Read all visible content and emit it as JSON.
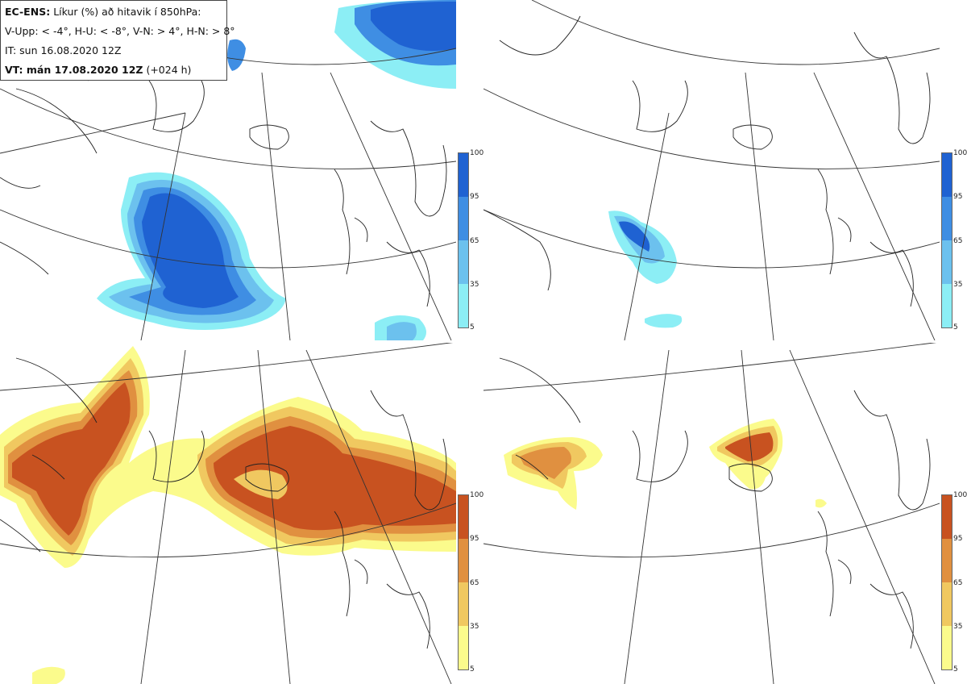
{
  "header": {
    "model": "EC-ENS:",
    "title": "Líkur (%) að hitavik í 850hPa:",
    "thresholds": "V-Upp: < -4°, H-U: < -8°, V-N: > 4°, H-N: > 8°",
    "issue_time": "IT: sun 16.08.2020 12Z",
    "valid_prefix": "VT: mán 17.08.2020 12Z",
    "valid_suffix": "(+024 h)"
  },
  "panels": [
    {
      "id": "V-Upp",
      "scheme": "blue"
    },
    {
      "id": "H-U",
      "scheme": "blue"
    },
    {
      "id": "V-N",
      "scheme": "orange"
    },
    {
      "id": "H-N",
      "scheme": "orange"
    }
  ],
  "colorbar": {
    "ticks": [
      "100",
      "95",
      "65",
      "35",
      "5"
    ],
    "blue_colors": [
      "#1f62d2",
      "#3f8ee3",
      "#6cc1ee",
      "#8ceef5"
    ],
    "orange_colors": [
      "#c85220",
      "#e09040",
      "#f0c860",
      "#fbfb8c"
    ]
  }
}
